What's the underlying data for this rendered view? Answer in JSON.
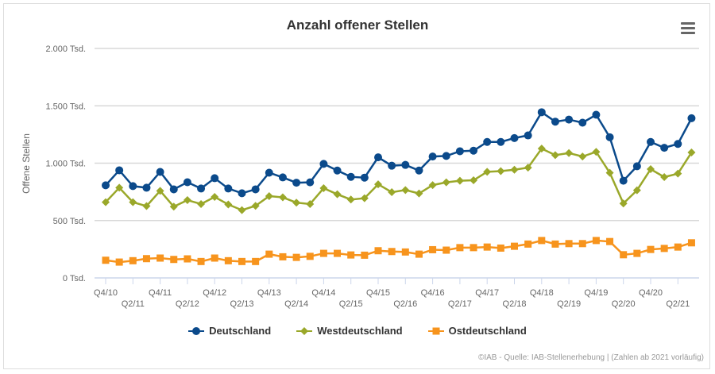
{
  "chart_data": {
    "type": "line",
    "title": "Anzahl offener Stellen",
    "ylabel": "Offene Stellen",
    "xlabel": "",
    "ylim": [
      0,
      2000
    ],
    "yticks": [
      {
        "value": 0,
        "label": "0 Tsd."
      },
      {
        "value": 500,
        "label": "500 Tsd."
      },
      {
        "value": 1000,
        "label": "1.000 Tsd."
      },
      {
        "value": 1500,
        "label": "1.500 Tsd."
      },
      {
        "value": 2000,
        "label": "2.000 Tsd."
      }
    ],
    "grid": true,
    "legend_position": "bottom",
    "categories": [
      "Q4/10",
      "Q1/11",
      "Q2/11",
      "Q3/11",
      "Q4/11",
      "Q1/12",
      "Q2/12",
      "Q3/12",
      "Q4/12",
      "Q1/13",
      "Q2/13",
      "Q3/13",
      "Q4/13",
      "Q1/14",
      "Q2/14",
      "Q3/14",
      "Q4/14",
      "Q1/15",
      "Q2/15",
      "Q3/15",
      "Q4/15",
      "Q1/16",
      "Q2/16",
      "Q3/16",
      "Q4/16",
      "Q1/17",
      "Q2/17",
      "Q3/17",
      "Q4/17",
      "Q1/18",
      "Q2/18",
      "Q3/18",
      "Q4/18",
      "Q1/19",
      "Q2/19",
      "Q3/19",
      "Q4/19",
      "Q1/20",
      "Q2/20",
      "Q3/20",
      "Q4/20",
      "Q1/21",
      "Q2/21",
      "Q3/21"
    ],
    "xtick_labels": [
      "Q4/10",
      "Q2/11",
      "Q4/11",
      "Q2/12",
      "Q4/12",
      "Q2/13",
      "Q4/13",
      "Q2/14",
      "Q4/14",
      "Q2/15",
      "Q4/15",
      "Q2/16",
      "Q4/16",
      "Q2/17",
      "Q4/17",
      "Q2/18",
      "Q4/18",
      "Q2/19",
      "Q4/19",
      "Q2/20",
      "Q4/20",
      "Q2/21"
    ],
    "series": [
      {
        "name": "Deutschland",
        "color": "#0b4a8b",
        "marker": "circle",
        "values": [
          807,
          938,
          800,
          786,
          924,
          772,
          834,
          779,
          869,
          779,
          738,
          772,
          917,
          876,
          830,
          833,
          994,
          936,
          881,
          874,
          1051,
          978,
          985,
          936,
          1058,
          1063,
          1104,
          1109,
          1185,
          1185,
          1219,
          1242,
          1444,
          1362,
          1380,
          1353,
          1422,
          1226,
          847,
          973,
          1185,
          1134,
          1168,
          1392
        ]
      },
      {
        "name": "Westdeutschland",
        "color": "#9aa82a",
        "marker": "diamond",
        "values": [
          660,
          786,
          660,
          626,
          759,
          621,
          678,
          644,
          706,
          640,
          591,
          628,
          713,
          702,
          656,
          644,
          782,
          729,
          683,
          695,
          816,
          747,
          766,
          736,
          809,
          833,
          847,
          851,
          925,
          931,
          943,
          961,
          1127,
          1070,
          1088,
          1058,
          1099,
          916,
          649,
          764,
          948,
          879,
          909,
          1093
        ]
      },
      {
        "name": "Ostdeutschland",
        "color": "#f7941d",
        "marker": "square",
        "values": [
          154,
          138,
          150,
          168,
          173,
          161,
          166,
          143,
          173,
          150,
          143,
          143,
          207,
          184,
          179,
          188,
          214,
          214,
          200,
          198,
          237,
          230,
          226,
          207,
          246,
          242,
          264,
          264,
          269,
          260,
          276,
          295,
          326,
          295,
          299,
          299,
          326,
          317,
          202,
          214,
          248,
          257,
          269,
          306
        ]
      }
    ]
  },
  "menu_icon": "hamburger-menu-icon",
  "footer": "©IAB - Quelle: IAB-Stellenerhebung | (Zahlen ab 2021 vorläufig)"
}
